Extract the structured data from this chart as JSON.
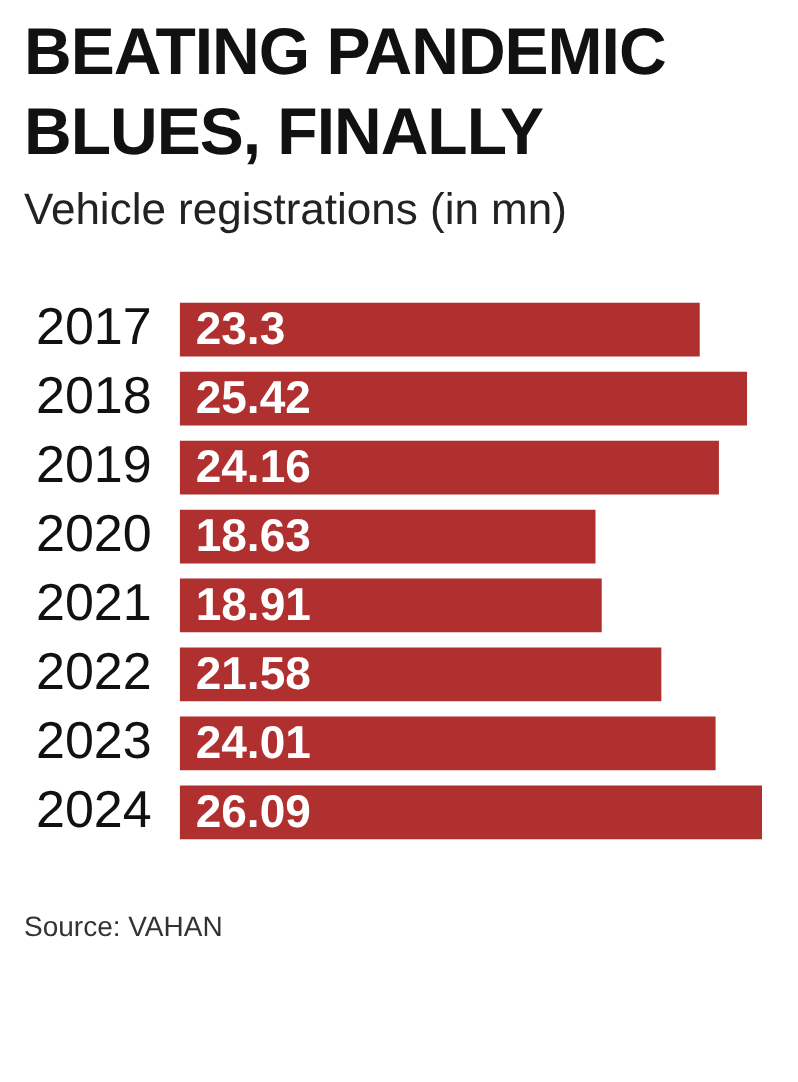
{
  "chart_data": {
    "type": "bar",
    "orientation": "horizontal",
    "title": "BEATING PANDEMIC BLUES, FINALLY",
    "subtitle": "Vehicle registrations (in mn)",
    "categories": [
      "2017",
      "2018",
      "2019",
      "2020",
      "2021",
      "2022",
      "2023",
      "2024"
    ],
    "values": [
      23.3,
      25.42,
      24.16,
      18.63,
      18.91,
      21.58,
      24.01,
      26.09
    ],
    "color": "#b0302f",
    "data_labels": true,
    "grid": false,
    "legend": false,
    "annotations": [
      "Source: VAHAN"
    ]
  }
}
